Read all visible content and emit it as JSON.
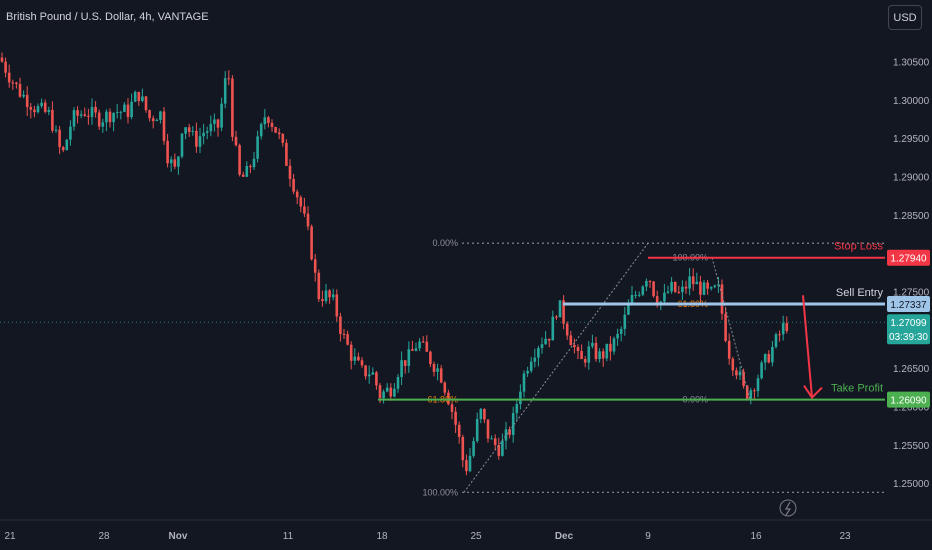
{
  "header": {
    "title": "British Pound / U.S. Dollar, 4h, VANTAGE",
    "currency": "USD"
  },
  "colors": {
    "background": "#131722",
    "up": "#26a69a",
    "down": "#ef5350",
    "axis_text": "#b2b5be",
    "stop_loss": "#f23645",
    "entry": "#9fc5e8",
    "take_profit": "#4caf50",
    "fib": "#8c8f98",
    "fib_mid": "#f57c00"
  },
  "chart_data": {
    "type": "candlestick",
    "y_ticks": [
      "1.30500",
      "1.30000",
      "1.29500",
      "1.29000",
      "1.28500",
      "1.28000",
      "1.27500",
      "1.27000",
      "1.26500",
      "1.26000",
      "1.25500",
      "1.25000"
    ],
    "y_tick_values": [
      1.305,
      1.3,
      1.295,
      1.29,
      1.285,
      1.28,
      1.275,
      1.27,
      1.265,
      1.26,
      1.255,
      1.25
    ],
    "ylim": [
      1.2478,
      1.3078
    ],
    "x_ticks": [
      "21",
      "28",
      "Nov",
      "11",
      "18",
      "25",
      "Dec",
      "9",
      "16",
      "23"
    ],
    "x_tick_positions": [
      10,
      104,
      178,
      288,
      382,
      476,
      564,
      648,
      756,
      845
    ],
    "price_path": [
      [
        0,
        1.3055
      ],
      [
        10,
        1.303
      ],
      [
        20,
        1.301
      ],
      [
        35,
        1.299
      ],
      [
        50,
        1.298
      ],
      [
        62,
        1.2925
      ],
      [
        72,
        1.2975
      ],
      [
        85,
        1.2985
      ],
      [
        100,
        1.2975
      ],
      [
        115,
        1.2985
      ],
      [
        128,
        1.2985
      ],
      [
        138,
        1.301
      ],
      [
        150,
        1.2975
      ],
      [
        160,
        1.2985
      ],
      [
        168,
        1.2925
      ],
      [
        176,
        1.2905
      ],
      [
        183,
        1.2975
      ],
      [
        195,
        1.2945
      ],
      [
        205,
        1.296
      ],
      [
        218,
        1.2965
      ],
      [
        228,
        1.3045
      ],
      [
        232,
        1.2965
      ],
      [
        240,
        1.2895
      ],
      [
        248,
        1.2905
      ],
      [
        258,
        1.2945
      ],
      [
        266,
        1.2985
      ],
      [
        278,
        1.2955
      ],
      [
        290,
        1.2905
      ],
      [
        300,
        1.2865
      ],
      [
        310,
        1.2815
      ],
      [
        318,
        1.2745
      ],
      [
        326,
        1.2745
      ],
      [
        334,
        1.2735
      ],
      [
        342,
        1.2695
      ],
      [
        352,
        1.2665
      ],
      [
        362,
        1.2645
      ],
      [
        372,
        1.2645
      ],
      [
        380,
        1.2615
      ],
      [
        392,
        1.2625
      ],
      [
        400,
        1.2655
      ],
      [
        410,
        1.2665
      ],
      [
        418,
        1.2685
      ],
      [
        428,
        1.2665
      ],
      [
        440,
        1.2645
      ],
      [
        450,
        1.2605
      ],
      [
        458,
        1.2565
      ],
      [
        465,
        1.2515
      ],
      [
        472,
        1.2545
      ],
      [
        480,
        1.2595
      ],
      [
        490,
        1.2555
      ],
      [
        500,
        1.2545
      ],
      [
        512,
        1.2575
      ],
      [
        520,
        1.2625
      ],
      [
        530,
        1.2665
      ],
      [
        540,
        1.2685
      ],
      [
        550,
        1.2695
      ],
      [
        558,
        1.2735
      ],
      [
        566,
        1.2705
      ],
      [
        572,
        1.2685
      ],
      [
        580,
        1.2655
      ],
      [
        590,
        1.2675
      ],
      [
        600,
        1.2665
      ],
      [
        610,
        1.2675
      ],
      [
        620,
        1.2695
      ],
      [
        630,
        1.2735
      ],
      [
        640,
        1.2755
      ],
      [
        648,
        1.2775
      ],
      [
        655,
        1.2745
      ],
      [
        662,
        1.2735
      ],
      [
        670,
        1.2755
      ],
      [
        680,
        1.2745
      ],
      [
        690,
        1.2765
      ],
      [
        700,
        1.2755
      ],
      [
        710,
        1.2745
      ],
      [
        718,
        1.2755
      ],
      [
        724,
        1.2705
      ],
      [
        730,
        1.2665
      ],
      [
        738,
        1.2645
      ],
      [
        745,
        1.2615
      ],
      [
        752,
        1.2625
      ],
      [
        760,
        1.2645
      ],
      [
        768,
        1.2665
      ],
      [
        776,
        1.2685
      ],
      [
        784,
        1.2705
      ],
      [
        790,
        1.27099
      ]
    ],
    "levels": [
      {
        "name": "stop_loss",
        "label": "Stop Loss",
        "value": 1.2794,
        "price_tag": "1.27940"
      },
      {
        "name": "sell_entry",
        "label": "Sell Entry",
        "value": 1.27337,
        "price_tag": "1.27337"
      },
      {
        "name": "take_profit",
        "label": "Take Profit",
        "value": 1.2609,
        "price_tag": "1.26090"
      }
    ],
    "current_price": {
      "value": 1.27099,
      "price_tag": "1.27099",
      "countdown": "03:39:30"
    },
    "fib_left": [
      {
        "label": "0.00%",
        "value": 1.2813
      },
      {
        "label": "61.80%",
        "value": 1.2609
      },
      {
        "label": "100.00%",
        "value": 1.2488
      }
    ],
    "fib_right": [
      {
        "label": "100.00%",
        "value": 1.2794
      },
      {
        "label": "61.80%",
        "value": 1.27337
      },
      {
        "label": "0.00%",
        "value": 1.2609
      }
    ]
  }
}
